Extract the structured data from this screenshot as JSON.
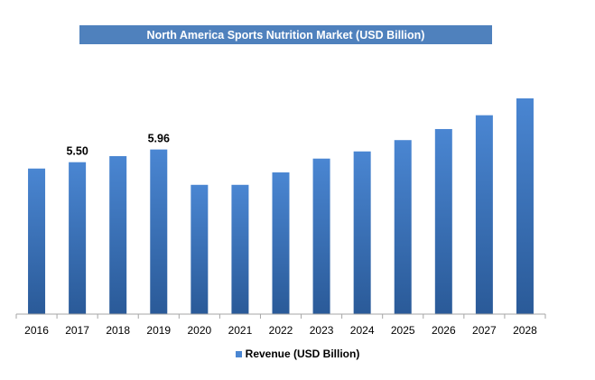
{
  "chart_data": {
    "type": "bar",
    "title": "North America Sports Nutrition Market (USD Billion)",
    "categories": [
      "2016",
      "2017",
      "2018",
      "2019",
      "2020",
      "2021",
      "2022",
      "2023",
      "2024",
      "2025",
      "2026",
      "2027",
      "2028"
    ],
    "series": [
      {
        "name": "Revenue (USD Billion)",
        "values": [
          5.27,
          5.5,
          5.72,
          5.96,
          4.68,
          4.68,
          5.13,
          5.63,
          5.89,
          6.3,
          6.7,
          7.2,
          7.81
        ],
        "color": "#4a86d2",
        "color_dark": "#2a5a98"
      }
    ],
    "data_labels": [
      {
        "index": 1,
        "text": "5.50"
      },
      {
        "index": 3,
        "text": "5.96"
      }
    ],
    "ylim": [
      0,
      7.81
    ],
    "xlabel": "",
    "ylabel": "",
    "legend_position": "bottom",
    "grid": false
  }
}
